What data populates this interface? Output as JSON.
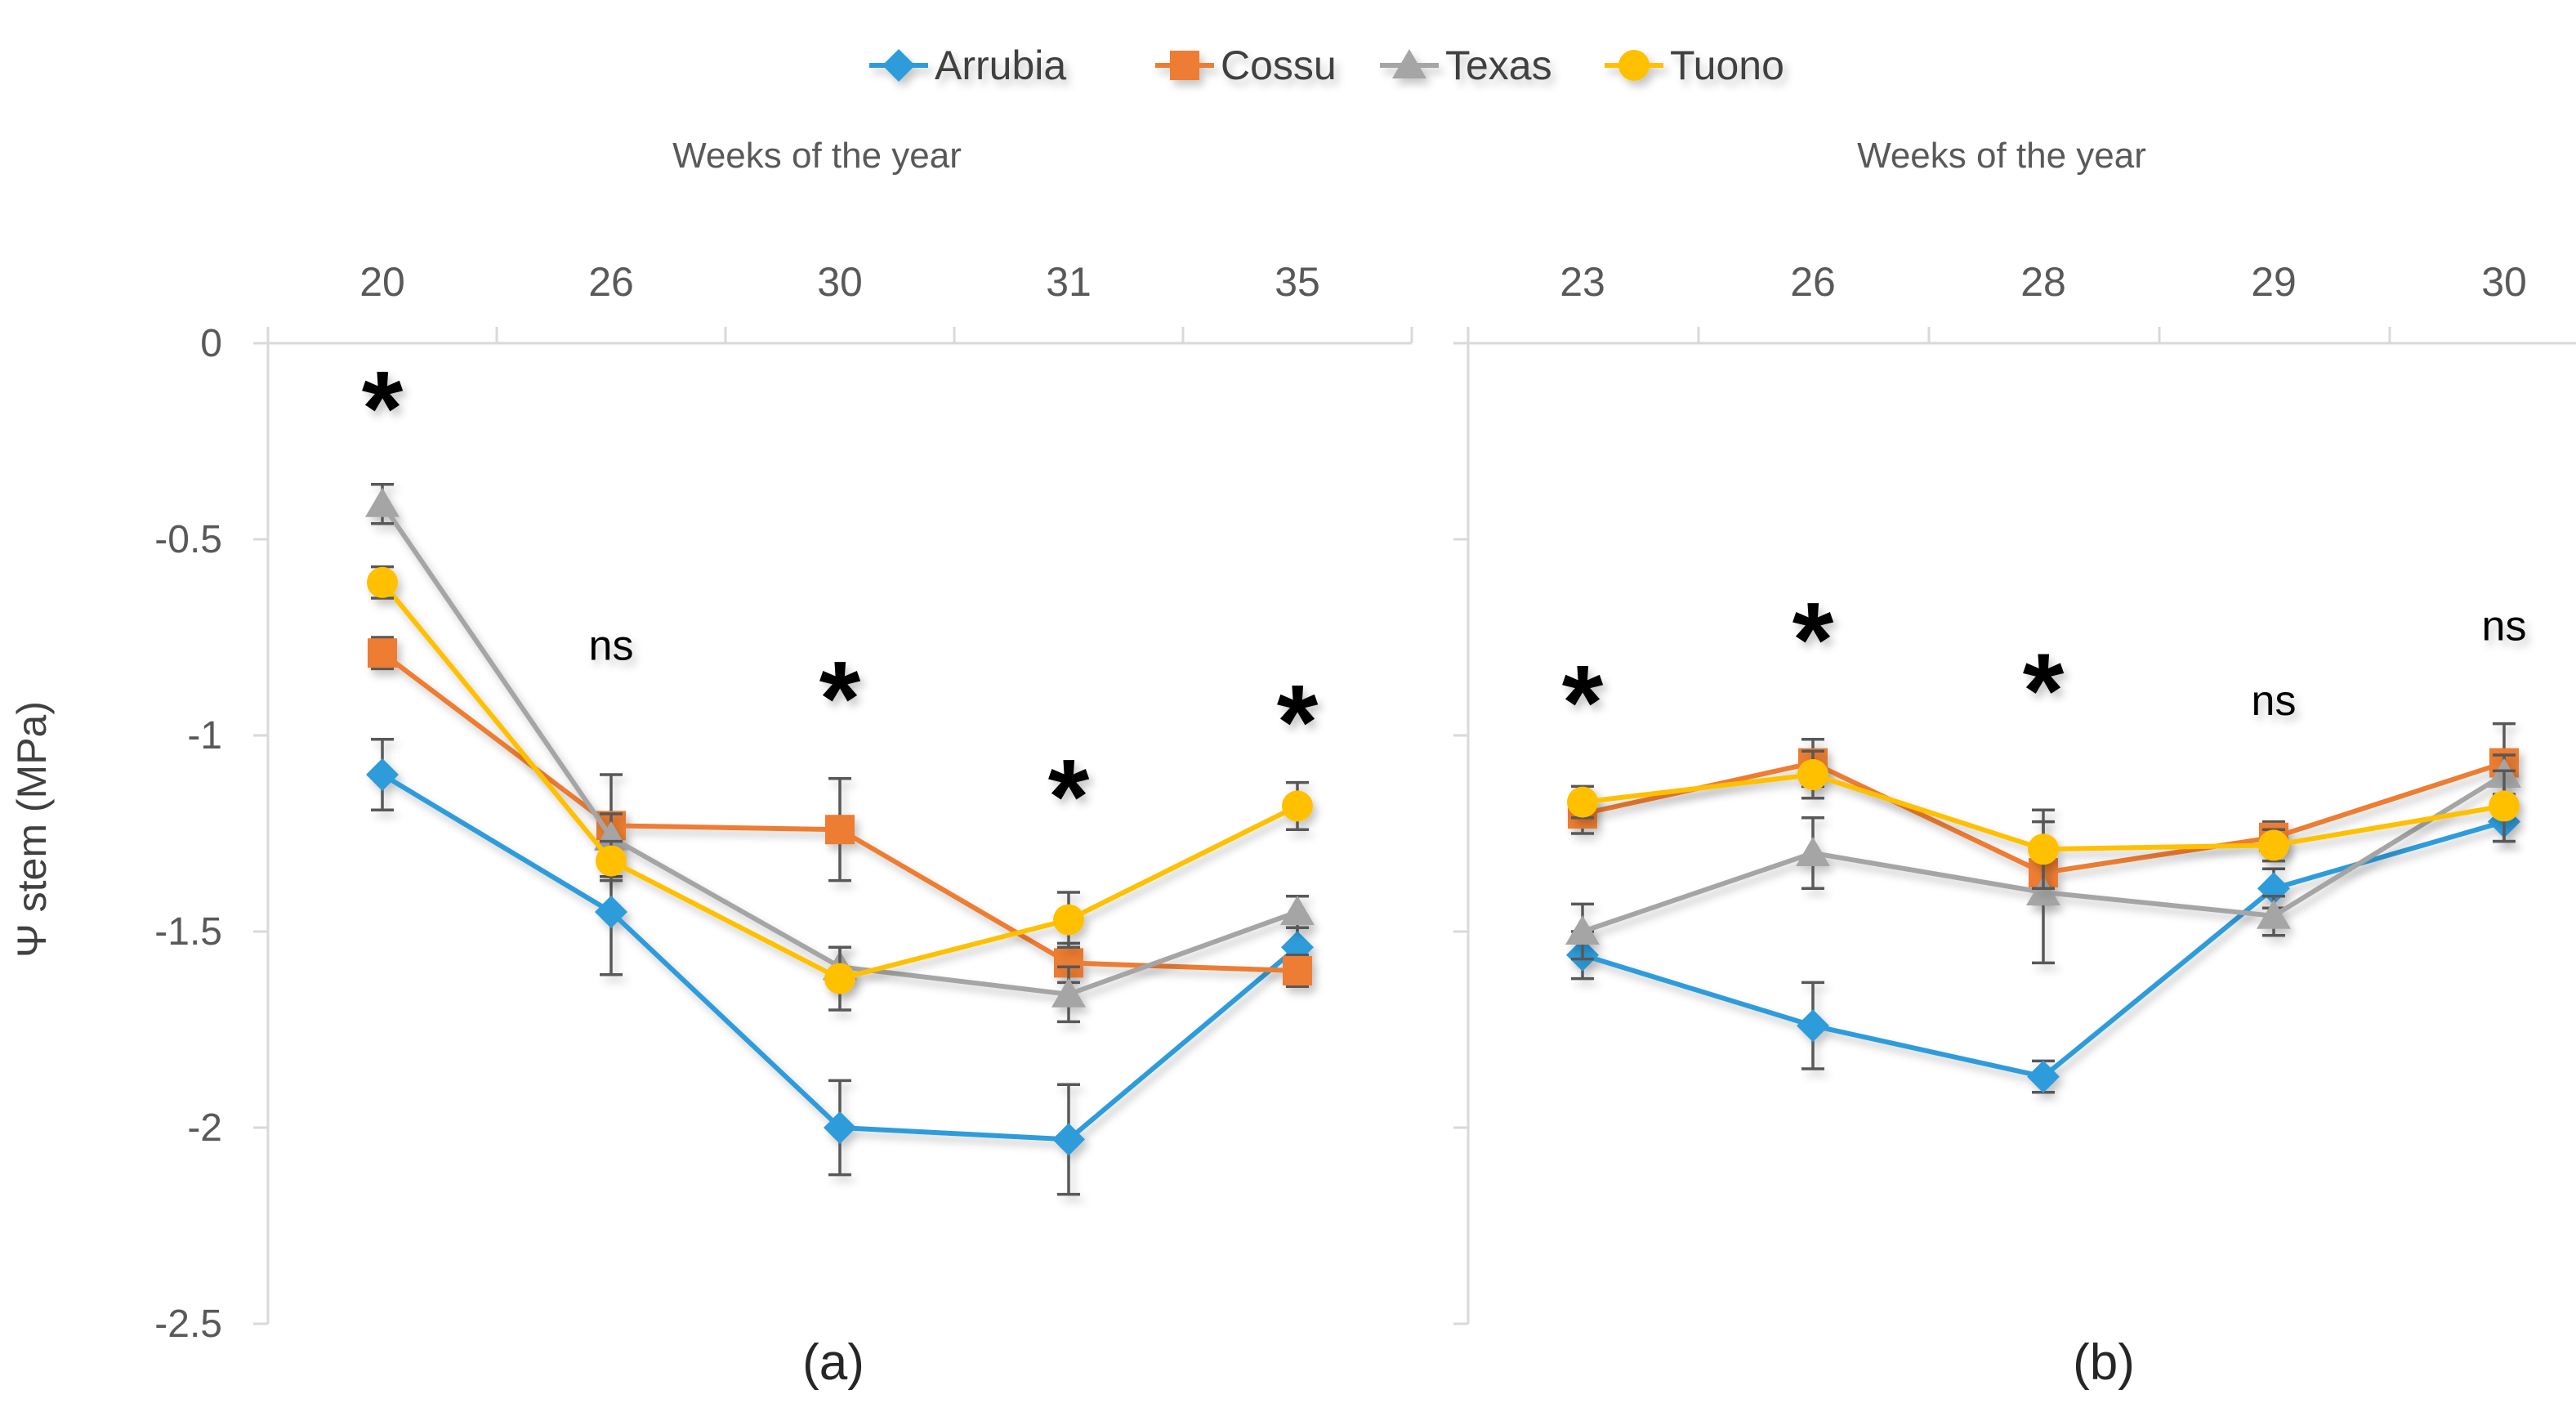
{
  "figure": {
    "background": "#FFFFFF",
    "y_axis_label": "Ψ stem (MPa)"
  },
  "legend": {
    "position": "top",
    "items": [
      {
        "label": "Arrubia",
        "marker": "diamond",
        "color": "#2D9CDB"
      },
      {
        "label": "Cossu",
        "marker": "square",
        "color": "#ED7D31"
      },
      {
        "label": "Texas",
        "marker": "triangle",
        "color": "#A5A5A5"
      },
      {
        "label": "Tuono",
        "marker": "circle",
        "color": "#FFC000"
      }
    ]
  },
  "chart_data": [
    {
      "id": "a",
      "type": "line",
      "title": "Weeks of the year",
      "caption": "(a)",
      "ylabel": "Ψ stem (MPa)",
      "grid": false,
      "ylim": [
        0,
        -2.5
      ],
      "yticks": [
        {
          "label": "0",
          "value": 0
        },
        {
          "label": "-0.5",
          "value": -0.5
        },
        {
          "label": "-1",
          "value": -1
        },
        {
          "label": "-1.5",
          "value": -1.5
        },
        {
          "label": "-2",
          "value": -2
        },
        {
          "label": "-2.5",
          "value": -2.5
        }
      ],
      "categories": [
        "20",
        "26",
        "30",
        "31",
        "35"
      ],
      "series": [
        {
          "name": "Arrubia",
          "marker": "diamond",
          "color": "#2D9CDB",
          "values": [
            -1.1,
            -1.45,
            -2.0,
            -2.03,
            -1.54
          ],
          "errors": [
            0.09,
            0.16,
            0.12,
            0.14,
            0.05
          ]
        },
        {
          "name": "Cossu",
          "marker": "square",
          "color": "#ED7D31",
          "values": [
            -0.79,
            -1.23,
            -1.24,
            -1.58,
            -1.6
          ],
          "errors": [
            0.04,
            0.13,
            0.13,
            0.05,
            0.04
          ]
        },
        {
          "name": "Texas",
          "marker": "triangle",
          "color": "#A5A5A5",
          "values": [
            -0.41,
            -1.26,
            -1.59,
            -1.66,
            -1.45
          ],
          "errors": [
            0.05,
            0.06,
            0.05,
            0.07,
            0.04
          ]
        },
        {
          "name": "Tuono",
          "marker": "circle",
          "color": "#FFC000",
          "values": [
            -0.61,
            -1.32,
            -1.62,
            -1.47,
            -1.18
          ],
          "errors": [
            0.04,
            0.05,
            0.08,
            0.07,
            0.06
          ]
        }
      ],
      "annotations": [
        {
          "x": 0,
          "y": -0.13,
          "text": "*"
        },
        {
          "x": 1,
          "y": -0.77,
          "text": "ns"
        },
        {
          "x": 2,
          "y": -0.87,
          "text": "*"
        },
        {
          "x": 3,
          "y": -1.12,
          "text": "*"
        },
        {
          "x": 4,
          "y": -0.93,
          "text": "*"
        }
      ]
    },
    {
      "id": "b",
      "type": "line",
      "title": "Weeks of the year",
      "caption": "(b)",
      "ylabel": "Ψ stem (MPa)",
      "grid": false,
      "ylim": [
        0,
        -2.5
      ],
      "yticks": [
        {
          "label": "0",
          "value": 0
        },
        {
          "label": "-0.5",
          "value": -0.5
        },
        {
          "label": "-1",
          "value": -1
        },
        {
          "label": "-1.5",
          "value": -1.5
        },
        {
          "label": "-2",
          "value": -2
        },
        {
          "label": "-2.5",
          "value": -2.5
        }
      ],
      "categories": [
        "23",
        "26",
        "28",
        "29",
        "30"
      ],
      "series": [
        {
          "name": "Arrubia",
          "marker": "diamond",
          "color": "#2D9CDB",
          "values": [
            -1.56,
            -1.74,
            -1.87,
            -1.39,
            -1.22
          ],
          "errors": [
            0.06,
            0.11,
            0.04,
            0.05,
            0.05
          ]
        },
        {
          "name": "Cossu",
          "marker": "square",
          "color": "#ED7D31",
          "values": [
            -1.2,
            -1.07,
            -1.35,
            -1.26,
            -1.07
          ],
          "errors": [
            0.05,
            0.06,
            0.08,
            0.04,
            0.1
          ]
        },
        {
          "name": "Texas",
          "marker": "triangle",
          "color": "#A5A5A5",
          "values": [
            -1.5,
            -1.3,
            -1.4,
            -1.46,
            -1.1
          ],
          "errors": [
            0.07,
            0.09,
            0.18,
            0.05,
            0.05
          ]
        },
        {
          "name": "Tuono",
          "marker": "circle",
          "color": "#FFC000",
          "values": [
            -1.17,
            -1.1,
            -1.29,
            -1.28,
            -1.18
          ],
          "errors": [
            0.04,
            0.06,
            0.1,
            0.04,
            0.09
          ]
        }
      ],
      "annotations": [
        {
          "x": 0,
          "y": -0.88,
          "text": "*"
        },
        {
          "x": 1,
          "y": -0.72,
          "text": "*"
        },
        {
          "x": 2,
          "y": -0.85,
          "text": "*"
        },
        {
          "x": 3,
          "y": -0.91,
          "text": "ns"
        },
        {
          "x": 4,
          "y": -0.72,
          "text": "ns"
        }
      ]
    }
  ]
}
